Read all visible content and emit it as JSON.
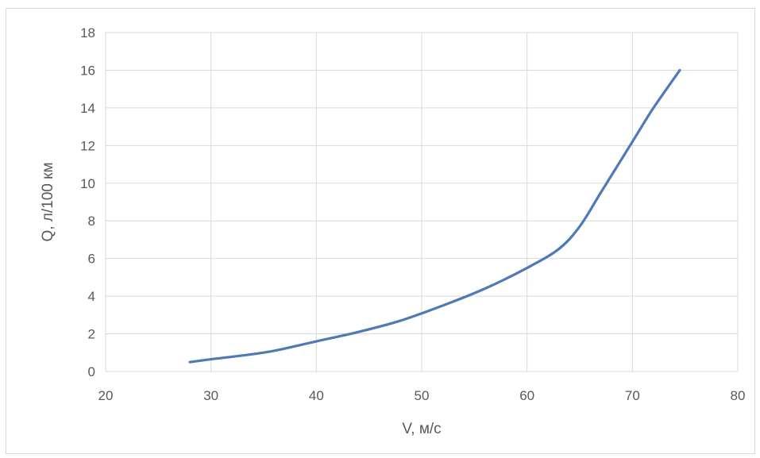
{
  "chart_data": {
    "type": "line",
    "title": "",
    "xlabel": "V, м/с",
    "ylabel": "Q, л/100 км",
    "xlim": [
      20,
      80
    ],
    "ylim": [
      0,
      18
    ],
    "xticks": [
      20,
      30,
      40,
      50,
      60,
      70,
      80
    ],
    "yticks": [
      0,
      2,
      4,
      6,
      8,
      10,
      12,
      14,
      16,
      18
    ],
    "grid": true,
    "legend": "none",
    "colors": {
      "series": "#4e7ab5",
      "grid": "#d9d9d9",
      "text": "#595959"
    },
    "series": [
      {
        "x": [
          28,
          30,
          33,
          36,
          40,
          44,
          48,
          52,
          56,
          60,
          63,
          65,
          67,
          70,
          72,
          74.5
        ],
        "y": [
          0.5,
          0.65,
          0.85,
          1.1,
          1.6,
          2.1,
          2.7,
          3.5,
          4.4,
          5.5,
          6.5,
          7.7,
          9.5,
          12.2,
          14.0,
          16.0
        ]
      }
    ]
  }
}
